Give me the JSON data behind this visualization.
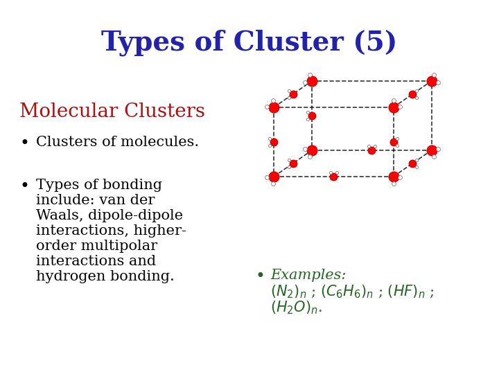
{
  "title": "Types of Cluster (5)",
  "title_color": "#2222aa",
  "title_fontsize": 28,
  "subtitle": "Molecular Clusters",
  "subtitle_color": "#aa1111",
  "subtitle_fontsize": 20,
  "bullet1": "Clusters of molecules.",
  "bullet2_lines": [
    "Types of bonding",
    "include: van der",
    "Waals, dipole-dipole",
    "interactions, higher-",
    "order multipolar",
    "interactions and",
    "hydrogen bonding."
  ],
  "bullet3_color": "#226622",
  "bullet_fontsize": 15,
  "bg_color": "#ffffff",
  "text_color": "#000000",
  "bullet_symbol": "•"
}
